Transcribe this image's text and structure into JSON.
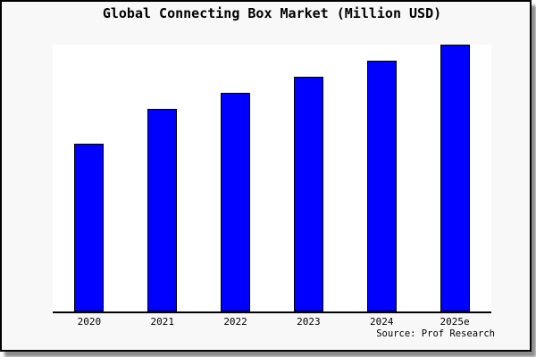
{
  "page": {
    "background": "#ffffff",
    "card_background": "#f8f8f8",
    "frame_color": "#000000",
    "shadow_color": "#737373"
  },
  "chart_data": {
    "type": "bar",
    "title": "Global Connecting Box Market (Million USD)",
    "categories": [
      "2020",
      "2021",
      "2022",
      "2023",
      "2024",
      "2025e"
    ],
    "values": [
      63,
      76,
      82,
      88,
      94,
      100
    ],
    "ylim": [
      0,
      100
    ],
    "xlabel": "",
    "ylabel": "",
    "grid": false,
    "legend": "none",
    "y_axis_shown": false,
    "note": "Chart shows no y-axis ticks or data labels; values are bar heights estimated relative to the tallest bar (2025e = 100)",
    "bar_fill": "#0000ff",
    "bar_border": "#000000",
    "axis_color": "#000000"
  },
  "footer": {
    "source_label": "Source: Prof Research"
  }
}
